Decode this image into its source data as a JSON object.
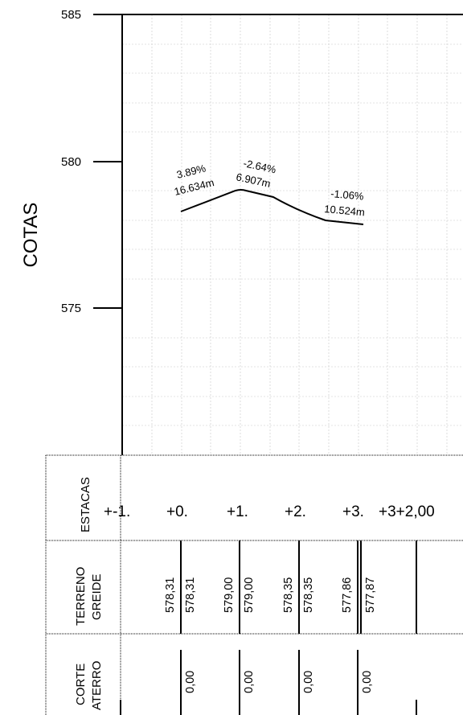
{
  "chart_data": {
    "type": "line",
    "title": "",
    "xlabel": "",
    "ylabel": "COTAS",
    "ylim": [
      570,
      585
    ],
    "y_ticks": [
      "585",
      "580",
      "575"
    ],
    "grid": true,
    "series": [
      {
        "values": [
          578.31,
          579.0,
          578.35,
          577.86,
          577.87
        ]
      }
    ],
    "annotations": [
      {
        "slope": "3.89%",
        "length": "16.634m"
      },
      {
        "slope": "-2.64%",
        "length": "6.907m"
      },
      {
        "slope": "-1.06%",
        "length": "10.524m"
      }
    ]
  },
  "table": {
    "estacas_label": "ESTACAS",
    "terreno_label": "TERRENO",
    "greide_label": "GREIDE",
    "corte_label": "CORTE",
    "aterro_label": "ATERRO",
    "stations": [
      "+-1.",
      "+0.",
      "+1.",
      "+2.",
      "+3.",
      "+3+2,00"
    ],
    "terreno": [
      "578,31",
      "579,00",
      "578,35",
      "577,86"
    ],
    "greide": [
      "578,31",
      "579,00",
      "578,35",
      "577,87"
    ],
    "corte_aterro": [
      "0,00",
      "0,00",
      "0,00",
      "0,00"
    ]
  }
}
